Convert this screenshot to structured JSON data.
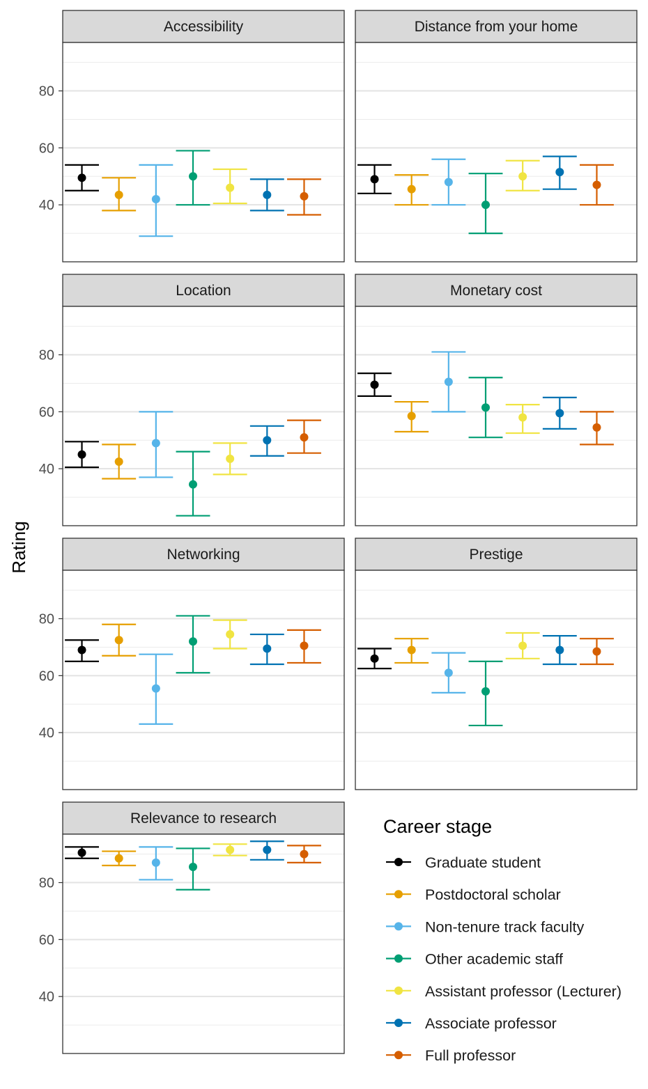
{
  "chart_data": {
    "type": "errorbar",
    "ylabel": "Rating",
    "xlabel": "",
    "ylim": [
      20,
      97
    ],
    "yticks": [
      40,
      60,
      80
    ],
    "grid": true,
    "legend": {
      "title": "Career stage",
      "placement": "bottom-right",
      "entries": [
        {
          "name": "Graduate student",
          "color": "#000000"
        },
        {
          "name": "Postdoctoral scholar",
          "color": "#E69F00"
        },
        {
          "name": "Non-tenure track faculty",
          "color": "#56B4E9"
        },
        {
          "name": "Other academic staff",
          "color": "#009E73"
        },
        {
          "name": "Assistant professor (Lecturer)",
          "color": "#F0E442"
        },
        {
          "name": "Associate professor",
          "color": "#0072B2"
        },
        {
          "name": "Full professor",
          "color": "#D55E00"
        }
      ]
    },
    "panels": [
      {
        "title": "Accessibility",
        "points": [
          {
            "mean": 49.5,
            "lower": 45.0,
            "upper": 54.0
          },
          {
            "mean": 43.5,
            "lower": 38.0,
            "upper": 49.5
          },
          {
            "mean": 42.0,
            "lower": 29.0,
            "upper": 54.0
          },
          {
            "mean": 50.0,
            "lower": 40.0,
            "upper": 59.0
          },
          {
            "mean": 46.0,
            "lower": 40.5,
            "upper": 52.5
          },
          {
            "mean": 43.5,
            "lower": 38.0,
            "upper": 49.0
          },
          {
            "mean": 43.0,
            "lower": 36.5,
            "upper": 49.0
          }
        ]
      },
      {
        "title": "Distance from your home",
        "points": [
          {
            "mean": 49.0,
            "lower": 44.0,
            "upper": 54.0
          },
          {
            "mean": 45.5,
            "lower": 40.0,
            "upper": 50.5
          },
          {
            "mean": 48.0,
            "lower": 40.0,
            "upper": 56.0
          },
          {
            "mean": 40.0,
            "lower": 30.0,
            "upper": 51.0
          },
          {
            "mean": 50.0,
            "lower": 45.0,
            "upper": 55.5
          },
          {
            "mean": 51.5,
            "lower": 45.5,
            "upper": 57.0
          },
          {
            "mean": 47.0,
            "lower": 40.0,
            "upper": 54.0
          }
        ]
      },
      {
        "title": "Location",
        "points": [
          {
            "mean": 45.0,
            "lower": 40.5,
            "upper": 49.5
          },
          {
            "mean": 42.5,
            "lower": 36.5,
            "upper": 48.5
          },
          {
            "mean": 49.0,
            "lower": 37.0,
            "upper": 60.0
          },
          {
            "mean": 34.5,
            "lower": 23.5,
            "upper": 46.0
          },
          {
            "mean": 43.5,
            "lower": 38.0,
            "upper": 49.0
          },
          {
            "mean": 50.0,
            "lower": 44.5,
            "upper": 55.0
          },
          {
            "mean": 51.0,
            "lower": 45.5,
            "upper": 57.0
          }
        ]
      },
      {
        "title": "Monetary cost",
        "points": [
          {
            "mean": 69.5,
            "lower": 65.5,
            "upper": 73.5
          },
          {
            "mean": 58.5,
            "lower": 53.0,
            "upper": 63.5
          },
          {
            "mean": 70.5,
            "lower": 60.0,
            "upper": 81.0
          },
          {
            "mean": 61.5,
            "lower": 51.0,
            "upper": 72.0
          },
          {
            "mean": 58.0,
            "lower": 52.5,
            "upper": 62.5
          },
          {
            "mean": 59.5,
            "lower": 54.0,
            "upper": 65.0
          },
          {
            "mean": 54.5,
            "lower": 48.5,
            "upper": 60.0
          }
        ]
      },
      {
        "title": "Networking",
        "points": [
          {
            "mean": 69.0,
            "lower": 65.0,
            "upper": 72.5
          },
          {
            "mean": 72.5,
            "lower": 67.0,
            "upper": 78.0
          },
          {
            "mean": 55.5,
            "lower": 43.0,
            "upper": 67.5
          },
          {
            "mean": 72.0,
            "lower": 61.0,
            "upper": 81.0
          },
          {
            "mean": 74.5,
            "lower": 69.5,
            "upper": 79.5
          },
          {
            "mean": 69.5,
            "lower": 64.0,
            "upper": 74.5
          },
          {
            "mean": 70.5,
            "lower": 64.5,
            "upper": 76.0
          }
        ]
      },
      {
        "title": "Prestige",
        "points": [
          {
            "mean": 66.0,
            "lower": 62.5,
            "upper": 69.5
          },
          {
            "mean": 69.0,
            "lower": 64.5,
            "upper": 73.0
          },
          {
            "mean": 61.0,
            "lower": 54.0,
            "upper": 68.0
          },
          {
            "mean": 54.5,
            "lower": 42.5,
            "upper": 65.0
          },
          {
            "mean": 70.5,
            "lower": 66.0,
            "upper": 75.0
          },
          {
            "mean": 69.0,
            "lower": 64.0,
            "upper": 74.0
          },
          {
            "mean": 68.5,
            "lower": 64.0,
            "upper": 73.0
          }
        ]
      },
      {
        "title": "Relevance to research",
        "points": [
          {
            "mean": 90.5,
            "lower": 88.5,
            "upper": 92.5
          },
          {
            "mean": 88.5,
            "lower": 86.0,
            "upper": 91.0
          },
          {
            "mean": 87.0,
            "lower": 81.0,
            "upper": 92.5
          },
          {
            "mean": 85.5,
            "lower": 77.5,
            "upper": 92.0
          },
          {
            "mean": 91.5,
            "lower": 89.5,
            "upper": 93.5
          },
          {
            "mean": 91.5,
            "lower": 88.0,
            "upper": 94.5
          },
          {
            "mean": 90.0,
            "lower": 87.0,
            "upper": 93.0
          }
        ]
      }
    ]
  }
}
